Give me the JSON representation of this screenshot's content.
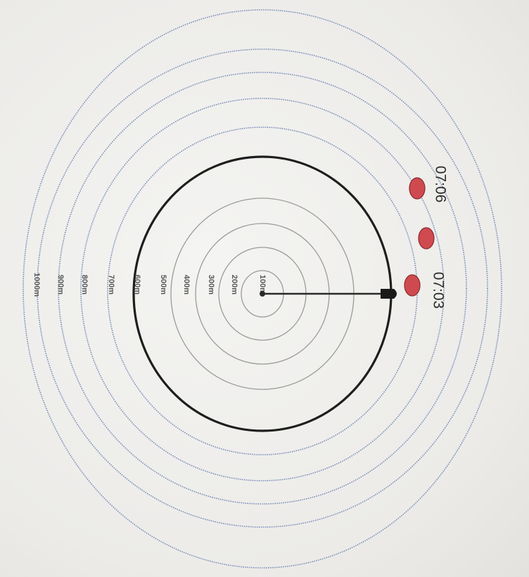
{
  "rings": [
    {
      "label": "100m",
      "style": "inner"
    },
    {
      "label": "200m",
      "style": "inner"
    },
    {
      "label": "300m",
      "style": "inner"
    },
    {
      "label": "400m",
      "style": "inner"
    },
    {
      "label": "500m",
      "style": "bold"
    },
    {
      "label": "600m",
      "style": "outer"
    },
    {
      "label": "700m",
      "style": "outer"
    },
    {
      "label": "800m",
      "style": "outer"
    },
    {
      "label": "900m",
      "style": "outer"
    },
    {
      "label": "1000m",
      "style": "outer"
    }
  ],
  "markers": [
    {
      "time": "07:03",
      "has_label": true
    },
    {
      "time": "",
      "has_label": false
    },
    {
      "time": "07:06",
      "has_label": true
    }
  ],
  "colors": {
    "inner_ring": "#9a9a9a",
    "bold_ring": "#1e1e1e",
    "outer_ring": "#7d8fb8",
    "marker_fill": "#cf4a4e",
    "marker_stroke": "#8a2a2e",
    "pointer": "#2a2a2a"
  }
}
